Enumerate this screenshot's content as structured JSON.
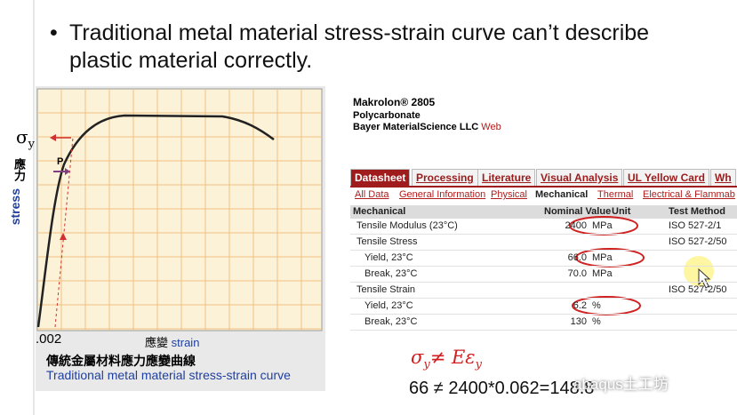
{
  "bullet": "Traditional metal material stress-strain curve can’t describe plastic material correctly.",
  "figure": {
    "sigma": "σ",
    "sigma_sub": "y",
    "p": "P",
    "ylabel_zh": "應力",
    "ylabel_en": "stress",
    "x_tick": ".002",
    "xlabel_zh": "應變",
    "xlabel_en": "strain",
    "caption_zh": "傳統金屬材料應力應變曲線",
    "caption_en": "Traditional metal material stress-strain curve"
  },
  "datasheet": {
    "product": "Makrolon® 2805",
    "material": "Polycarbonate",
    "supplier": "Bayer MaterialScience LLC",
    "web": "Web",
    "tabs": [
      "Datasheet",
      "Processing",
      "Literature",
      "Visual Analysis",
      "UL Yellow Card",
      "Wh"
    ],
    "subtabs": [
      "All Data",
      "General Information",
      "Physical",
      "Mechanical",
      "Thermal",
      "Electrical & Flammab"
    ],
    "columns": [
      "Mechanical",
      "Nominal Value",
      "Unit",
      "Test Method"
    ],
    "rows": [
      {
        "property": "Tensile Modulus (23°C)",
        "value": "2400",
        "unit": "MPa",
        "method": "ISO 527-2/1"
      },
      {
        "property": "Tensile Stress",
        "method": "ISO 527-2/50",
        "sub": [
          {
            "property": "Yield, 23°C",
            "value": "66.0",
            "unit": "MPa"
          },
          {
            "property": "Break, 23°C",
            "value": "70.0",
            "unit": "MPa"
          }
        ]
      },
      {
        "property": "Tensile Strain",
        "method": "ISO 527-2/50",
        "sub": [
          {
            "property": "Yield, 23°C",
            "value": "6.2",
            "unit": "%"
          },
          {
            "property": "Break, 23°C",
            "value": "130",
            "unit": "%"
          }
        ]
      }
    ]
  },
  "formula": {
    "sigma": "σ",
    "sub1": "y",
    "rest": "≠ Eε",
    "sub2": "y",
    "check": "66 ≠ 2400*0.062=148.8"
  },
  "watermark": "abaqus土工坊"
}
